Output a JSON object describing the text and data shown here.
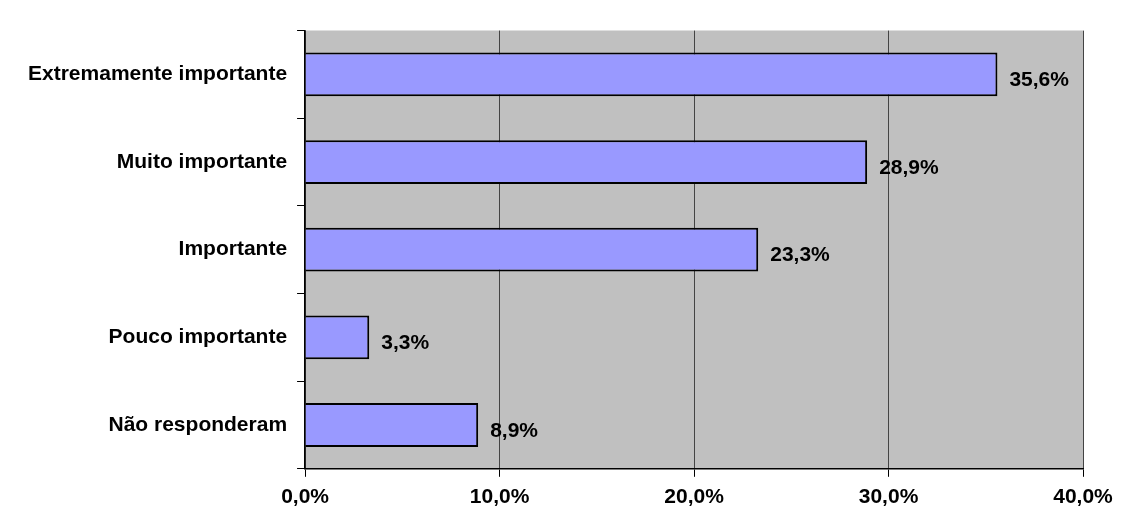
{
  "chart_data": {
    "type": "bar",
    "orientation": "horizontal",
    "categories": [
      "Extremamente importante",
      "Muito importante",
      "Importante",
      "Pouco importante",
      "Não responderam"
    ],
    "values": [
      35.6,
      28.9,
      23.3,
      3.3,
      8.9
    ],
    "value_labels": [
      "35,6%",
      "28,9%",
      "23,3%",
      "3,3%",
      "8,9%"
    ],
    "color": "#9999ff",
    "xlim": [
      0,
      40
    ],
    "xticks": [
      {
        "value": 0,
        "label": "0,0%"
      },
      {
        "value": 10,
        "label": "10,0%"
      },
      {
        "value": 20,
        "label": "20,0%"
      },
      {
        "value": 30,
        "label": "30,0%"
      },
      {
        "value": 40,
        "label": "40,0%"
      }
    ],
    "grid": "x",
    "legend": false
  }
}
